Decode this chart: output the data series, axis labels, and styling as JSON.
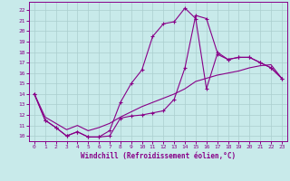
{
  "xlabel": "Windchill (Refroidissement éolien,°C)",
  "background_color": "#c8eaea",
  "line_color": "#880088",
  "grid_color": "#aacece",
  "x_ticks": [
    0,
    1,
    2,
    3,
    4,
    5,
    6,
    7,
    8,
    9,
    10,
    11,
    12,
    13,
    14,
    15,
    16,
    17,
    18,
    19,
    20,
    21,
    22,
    23
  ],
  "y_ticks": [
    10,
    11,
    12,
    13,
    14,
    15,
    16,
    17,
    18,
    19,
    20,
    21,
    22
  ],
  "ylim": [
    9.5,
    22.8
  ],
  "xlim": [
    -0.5,
    23.5
  ],
  "line1_x": [
    0,
    1,
    2,
    3,
    4,
    5,
    6,
    7,
    8,
    9,
    10,
    11,
    12,
    13,
    14,
    15,
    16,
    17,
    18,
    19,
    20,
    21,
    22,
    23
  ],
  "line1_y": [
    14.0,
    11.5,
    10.8,
    10.0,
    10.4,
    9.9,
    9.9,
    10.0,
    11.7,
    11.9,
    12.0,
    12.2,
    12.4,
    13.5,
    16.5,
    21.5,
    21.2,
    18.0,
    17.3,
    17.5,
    17.5,
    17.0,
    16.5,
    15.5
  ],
  "line2_x": [
    0,
    1,
    2,
    3,
    4,
    5,
    6,
    7,
    8,
    9,
    10,
    11,
    12,
    13,
    14,
    15,
    16,
    17,
    18,
    19,
    20,
    21,
    22,
    23
  ],
  "line2_y": [
    14.0,
    11.5,
    10.8,
    10.0,
    10.4,
    9.9,
    9.9,
    10.5,
    13.2,
    15.0,
    16.3,
    19.5,
    20.7,
    20.9,
    22.2,
    21.2,
    14.5,
    17.8,
    17.3,
    17.5,
    17.5,
    17.0,
    16.5,
    15.5
  ],
  "line3_x": [
    0,
    1,
    2,
    3,
    4,
    5,
    6,
    7,
    8,
    9,
    10,
    11,
    12,
    13,
    14,
    15,
    16,
    17,
    18,
    19,
    20,
    21,
    22,
    23
  ],
  "line3_y": [
    14.0,
    11.8,
    11.2,
    10.6,
    11.0,
    10.5,
    10.8,
    11.2,
    11.8,
    12.3,
    12.8,
    13.2,
    13.6,
    14.0,
    14.5,
    15.2,
    15.5,
    15.8,
    16.0,
    16.2,
    16.5,
    16.7,
    16.8,
    15.5
  ]
}
